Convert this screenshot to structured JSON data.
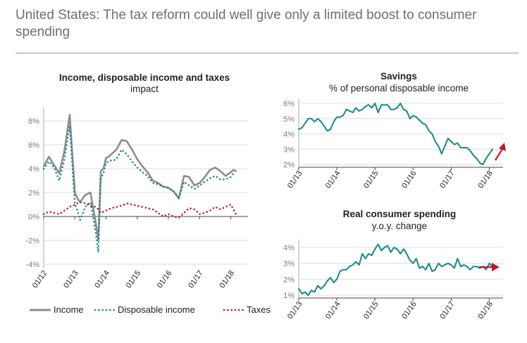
{
  "page": {
    "headline": "United States: The tax reform could well give only a limited boost to consumer spending"
  },
  "colors": {
    "income": "#8c8c8c",
    "disposable": "#138a86",
    "taxes": "#c0172a",
    "arrow": "#c0172a",
    "savings": "#138a86",
    "spending": "#138a86"
  },
  "chart_data": [
    {
      "type": "line",
      "title": "Income, disposable income and taxes",
      "subtitle": "impact",
      "ylim": [
        -4,
        9
      ],
      "yticks": [
        -4,
        -2,
        0,
        2,
        4,
        6,
        8
      ],
      "ytick_labels": [
        "-4%",
        "-2%",
        "0%",
        "2%",
        "4%",
        "6%",
        "8%"
      ],
      "xlim": [
        0,
        77
      ],
      "xticks": [
        0,
        12,
        24,
        36,
        48,
        60,
        72
      ],
      "xtick_labels": [
        "01/12",
        "01/13",
        "01/14",
        "01/15",
        "01/16",
        "01/17",
        "01/18"
      ],
      "legend": [
        "Income",
        "Disposable income",
        "Taxes"
      ],
      "series": [
        {
          "name": "Income",
          "x": [
            0,
            2,
            4,
            6,
            8,
            10,
            12,
            13,
            14,
            16,
            18,
            20,
            21,
            22,
            23,
            24,
            25,
            26,
            27,
            28,
            30,
            32,
            34,
            36,
            38,
            40,
            42,
            44,
            46,
            48,
            50,
            52,
            54,
            56,
            58,
            60,
            62,
            64,
            66,
            68,
            70,
            72,
            73,
            74
          ],
          "values": [
            4.2,
            5.0,
            4.3,
            3.6,
            5.5,
            8.5,
            2.0,
            1.5,
            1.2,
            1.8,
            2.0,
            -0.5,
            -2.0,
            3.8,
            4.0,
            4.9,
            5.0,
            5.2,
            5.4,
            5.6,
            6.4,
            6.3,
            5.6,
            4.8,
            4.2,
            3.7,
            3.0,
            2.8,
            2.5,
            2.4,
            2.1,
            1.5,
            3.4,
            3.3,
            2.6,
            2.8,
            3.3,
            3.9,
            4.1,
            3.8,
            3.4,
            3.7,
            3.9,
            3.8
          ]
        },
        {
          "name": "Disposable income",
          "x": [
            0,
            2,
            4,
            6,
            8,
            10,
            12,
            13,
            14,
            16,
            18,
            20,
            21,
            22,
            23,
            24,
            25,
            26,
            27,
            28,
            30,
            32,
            34,
            36,
            38,
            40,
            42,
            44,
            46,
            48,
            50,
            52,
            54,
            56,
            58,
            60,
            62,
            64,
            66,
            68,
            70,
            72,
            73,
            74
          ],
          "values": [
            4.0,
            4.6,
            4.1,
            3.0,
            4.8,
            7.6,
            1.0,
            0.5,
            -0.3,
            0.8,
            1.2,
            -1.3,
            -3.0,
            3.2,
            3.6,
            4.5,
            4.6,
            4.7,
            4.7,
            4.8,
            5.6,
            5.2,
            4.6,
            4.1,
            3.7,
            3.4,
            2.8,
            2.7,
            2.5,
            2.4,
            2.1,
            1.6,
            2.9,
            2.6,
            2.3,
            2.6,
            2.9,
            3.2,
            3.4,
            3.1,
            3.1,
            3.3,
            3.6,
            3.6
          ]
        },
        {
          "name": "Taxes",
          "x": [
            0,
            2,
            4,
            6,
            8,
            10,
            12,
            14,
            16,
            18,
            20,
            21,
            22,
            24,
            26,
            28,
            30,
            32,
            34,
            36,
            38,
            40,
            42,
            44,
            46,
            48,
            50,
            52,
            54,
            56,
            58,
            60,
            62,
            64,
            66,
            68,
            70,
            72,
            73,
            74
          ],
          "values": [
            0.2,
            0.4,
            0.3,
            0.2,
            0.5,
            0.8,
            1.0,
            1.2,
            1.1,
            0.9,
            0.8,
            0.6,
            0.3,
            0.5,
            0.7,
            0.8,
            0.9,
            1.1,
            1.0,
            0.9,
            0.8,
            0.7,
            0.6,
            0.3,
            0.0,
            0.2,
            0.0,
            -0.1,
            0.3,
            0.7,
            0.6,
            0.2,
            0.3,
            0.5,
            0.8,
            0.6,
            0.8,
            1.0,
            0.6,
            0.2
          ]
        }
      ]
    },
    {
      "type": "line",
      "title": "Savings",
      "subtitle": "% of personal disposable income",
      "ylim": [
        2,
        6
      ],
      "yticks": [
        2,
        3,
        4,
        5,
        6
      ],
      "ytick_labels": [
        "2%",
        "3%",
        "4%",
        "5%",
        "6%"
      ],
      "xlim": [
        0,
        63
      ],
      "xticks": [
        0,
        12,
        24,
        36,
        48,
        60
      ],
      "xtick_labels": [
        "01/13",
        "01/14",
        "01/15",
        "01/16",
        "01/17",
        "01/18"
      ],
      "trend_arrow": "up",
      "series": [
        {
          "name": "Savings rate",
          "x": [
            0,
            1,
            2,
            3,
            4,
            5,
            6,
            7,
            8,
            9,
            10,
            11,
            12,
            13,
            14,
            15,
            16,
            17,
            18,
            19,
            20,
            21,
            22,
            23,
            24,
            25,
            26,
            27,
            28,
            29,
            30,
            31,
            32,
            33,
            34,
            35,
            36,
            37,
            38,
            39,
            40,
            41,
            42,
            43,
            44,
            45,
            46,
            47,
            48,
            49,
            50,
            51,
            52,
            53,
            54,
            55,
            56,
            57,
            58,
            59,
            60,
            61
          ],
          "values": [
            4.3,
            4.4,
            4.7,
            5.0,
            5.0,
            4.8,
            5.0,
            4.8,
            4.5,
            4.2,
            4.3,
            4.8,
            5.1,
            5.1,
            5.2,
            5.6,
            5.5,
            5.4,
            5.7,
            5.5,
            5.6,
            5.8,
            5.9,
            5.7,
            6.0,
            5.4,
            5.9,
            5.9,
            5.9,
            5.6,
            5.6,
            5.7,
            6.0,
            5.6,
            5.5,
            5.0,
            5.2,
            5.1,
            4.9,
            4.7,
            4.6,
            4.2,
            4.0,
            3.5,
            3.2,
            2.7,
            3.2,
            3.7,
            3.5,
            3.3,
            3.4,
            3.1,
            3.1,
            3.1,
            2.9,
            2.6,
            2.4,
            2.1,
            2.0,
            2.4,
            2.7,
            3.0
          ]
        }
      ]
    },
    {
      "type": "line",
      "title": "Real consumer spending",
      "subtitle": "y.o.y. change",
      "ylim": [
        1,
        4.5
      ],
      "yticks": [
        1,
        2,
        3,
        4
      ],
      "ytick_labels": [
        "1%",
        "2%",
        "3%",
        "4%"
      ],
      "xlim": [
        0,
        63
      ],
      "xticks": [
        0,
        12,
        24,
        36,
        48,
        60
      ],
      "xtick_labels": [
        "01/13",
        "01/14",
        "01/15",
        "01/16",
        "01/17",
        "01/18"
      ],
      "trend_arrow": "right",
      "series": [
        {
          "name": "Real consumer spending",
          "x": [
            0,
            1,
            2,
            3,
            4,
            5,
            6,
            7,
            8,
            9,
            10,
            11,
            12,
            13,
            14,
            15,
            16,
            17,
            18,
            19,
            20,
            21,
            22,
            23,
            24,
            25,
            26,
            27,
            28,
            29,
            30,
            31,
            32,
            33,
            34,
            35,
            36,
            37,
            38,
            39,
            40,
            41,
            42,
            43,
            44,
            45,
            46,
            47,
            48,
            49,
            50,
            51,
            52,
            53,
            54,
            55,
            56,
            57,
            58,
            59,
            60,
            61
          ],
          "values": [
            1.4,
            1.1,
            1.2,
            1.0,
            1.3,
            1.2,
            1.6,
            1.4,
            1.6,
            1.9,
            2.1,
            1.8,
            2.0,
            2.5,
            2.6,
            2.6,
            2.8,
            2.9,
            3.1,
            2.9,
            3.6,
            3.3,
            3.6,
            3.5,
            3.9,
            4.2,
            3.8,
            4.0,
            4.1,
            3.7,
            4.0,
            3.9,
            3.6,
            3.9,
            3.6,
            3.2,
            3.0,
            3.3,
            2.7,
            2.8,
            2.6,
            3.0,
            2.5,
            2.6,
            3.0,
            2.8,
            2.9,
            3.0,
            2.9,
            2.7,
            3.3,
            2.8,
            2.9,
            2.8,
            2.6,
            2.8,
            2.8,
            2.7,
            2.8,
            2.6,
            3.0,
            2.8
          ]
        }
      ]
    }
  ]
}
